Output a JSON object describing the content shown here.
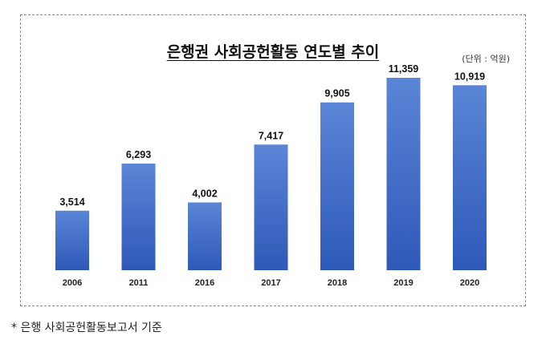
{
  "chart_data": {
    "type": "bar",
    "title": "은행권 사회공헌활동 연도별 추이",
    "unit_note": "(단위 : 억원)",
    "categories": [
      "2006",
      "2011",
      "2016",
      "2017",
      "2018",
      "2019",
      "2020"
    ],
    "values": [
      3514,
      6293,
      4002,
      7417,
      9905,
      11359,
      10919
    ],
    "value_labels": [
      "3,514",
      "6,293",
      "4,002",
      "7,417",
      "9,905",
      "11,359",
      "10,919"
    ],
    "ylim": [
      0,
      11359
    ],
    "grid": false,
    "legend": "none",
    "bar_color_top": "#5b85d6",
    "bar_color_bottom": "#2e59b8"
  },
  "footnote": "* 은행 사회공헌활동보고서 기준"
}
